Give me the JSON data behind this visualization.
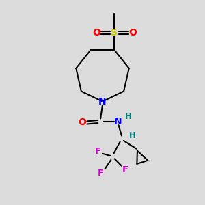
{
  "background_color": "#dcdcdc",
  "bond_color": "#000000",
  "N_color": "#0000ff",
  "O_color": "#ff0000",
  "S_color": "#cccc00",
  "F_color": "#cc00cc",
  "H_color": "#008080",
  "figsize": [
    3.0,
    3.0
  ],
  "dpi": 100,
  "xlim": [
    0,
    10
  ],
  "ylim": [
    0,
    10
  ]
}
